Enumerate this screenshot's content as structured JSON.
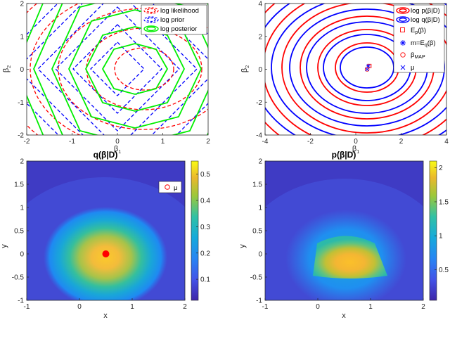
{
  "chart_data": [
    {
      "type": "contour",
      "xlabel": "β1",
      "ylabel": "β2",
      "xlim": [
        -2,
        2
      ],
      "ylim": [
        -2,
        2
      ],
      "xticks": [
        "-2",
        "-1",
        "0",
        "1",
        "2"
      ],
      "yticks": [
        "-2",
        "-1",
        "0",
        "1",
        "2"
      ],
      "legend_position": "top-right",
      "series": [
        {
          "name": "log likelihood",
          "color": "#ff0000",
          "style": "dashed",
          "center": [
            0.6,
            0.0
          ]
        },
        {
          "name": "log prior",
          "color": "#0000ff",
          "style": "dashed",
          "center": [
            0.0,
            0.0
          ]
        },
        {
          "name": "log posterior",
          "color": "#00ee00",
          "style": "solid",
          "center": [
            0.4,
            0.0
          ]
        }
      ]
    },
    {
      "type": "contour",
      "xlabel": "β1",
      "ylabel": "β2",
      "xlim": [
        -4,
        4
      ],
      "ylim": [
        -4,
        4
      ],
      "xticks": [
        "-4",
        "-2",
        "0",
        "2",
        "4"
      ],
      "yticks": [
        "-4",
        "-2",
        "0",
        "2",
        "4"
      ],
      "legend_position": "top-right",
      "series": [
        {
          "name": "log p(β|D)",
          "color": "#ff0000",
          "style": "solid",
          "center": [
            0.5,
            0.0
          ]
        },
        {
          "name": "log q(β|D)",
          "color": "#0000ff",
          "style": "solid",
          "center": [
            0.5,
            0.0
          ]
        }
      ],
      "markers": [
        {
          "name": "Ep(β)",
          "symbol": "square",
          "color": "#ff0000",
          "x": 0.6,
          "y": 0.2
        },
        {
          "name": "m=Eq(β)",
          "symbol": "asterisk",
          "color": "#0000ff",
          "x": 0.55,
          "y": 0.2
        },
        {
          "name": "βMAP",
          "symbol": "circle",
          "color": "#ff0000",
          "x": 0.5,
          "y": 0.0
        },
        {
          "name": "μ",
          "symbol": "x",
          "color": "#0000ff",
          "x": 0.5,
          "y": 0.0
        }
      ]
    },
    {
      "type": "heatmap",
      "title": "q(β|D)",
      "xlabel": "x",
      "ylabel": "y",
      "xlim": [
        -1,
        2
      ],
      "ylim": [
        -1,
        2
      ],
      "xticks": [
        "-1",
        "0",
        "1",
        "2"
      ],
      "yticks": [
        "-1",
        "-0.5",
        "0",
        "0.5",
        "1",
        "1.5",
        "2"
      ],
      "colorbar": {
        "range": [
          0.02,
          0.55
        ],
        "ticks": [
          "0.1",
          "0.2",
          "0.3",
          "0.4",
          "0.5"
        ]
      },
      "peak": {
        "x": 0.6,
        "y": 0.2,
        "value": 0.55
      },
      "legend_position": "top-right",
      "points": [
        {
          "name": "μ",
          "x": 0.5,
          "y": 0.0,
          "color": "#ff0000"
        }
      ]
    },
    {
      "type": "heatmap",
      "title": "p(β|D)",
      "xlabel": "x",
      "ylabel": "y",
      "xlim": [
        -1,
        2
      ],
      "ylim": [
        -1,
        2
      ],
      "xticks": [
        "-1",
        "0",
        "1",
        "2"
      ],
      "yticks": [
        "-1",
        "-0.5",
        "0",
        "0.5",
        "1",
        "1.5",
        "2"
      ],
      "colorbar": {
        "range": [
          0.05,
          2.1
        ],
        "ticks": [
          "0.5",
          "1",
          "1.5",
          "2"
        ]
      },
      "peak": {
        "x": 0.55,
        "y": 0.1,
        "value": 2.1
      }
    }
  ],
  "colors": {
    "likelihood": "#ff0000",
    "prior": "#0000ff",
    "posterior": "#00ee00"
  }
}
